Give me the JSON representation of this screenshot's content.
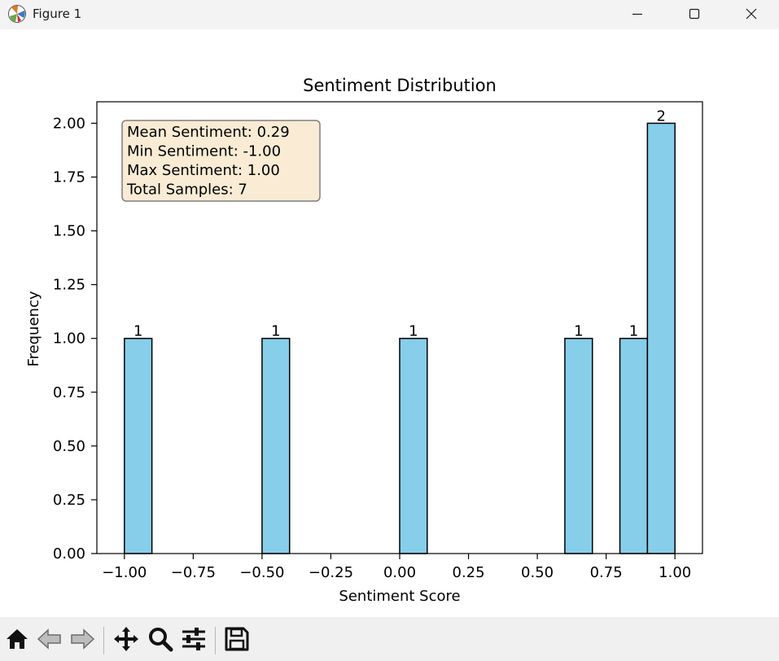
{
  "window": {
    "title": "Figure 1",
    "minimize_icon": "minimize-icon",
    "maximize_icon": "maximize-icon",
    "close_icon": "close-icon"
  },
  "toolbar": {
    "items": [
      {
        "name": "home-button",
        "icon": "home-icon"
      },
      {
        "name": "back-button",
        "icon": "back-arrow-icon"
      },
      {
        "name": "forward-button",
        "icon": "forward-arrow-icon"
      },
      {
        "name": "pan-button",
        "icon": "move-icon"
      },
      {
        "name": "zoom-button",
        "icon": "magnifier-icon"
      },
      {
        "name": "configure-subplots-button",
        "icon": "sliders-icon"
      },
      {
        "name": "save-button",
        "icon": "floppy-disk-icon"
      }
    ]
  },
  "chart_data": {
    "type": "bar",
    "title": "Sentiment Distribution",
    "xlabel": "Sentiment Score",
    "ylabel": "Frequency",
    "xlim": [
      -1.1,
      1.1
    ],
    "ylim": [
      0,
      2.1
    ],
    "bar_color": "#87ceeb",
    "edge_color": "#000000",
    "bins": [
      {
        "x0": -1.0,
        "x1": -0.9,
        "count": 1,
        "label": "1"
      },
      {
        "x0": -0.5,
        "x1": -0.4,
        "count": 1,
        "label": "1"
      },
      {
        "x0": 0.0,
        "x1": 0.1,
        "count": 1,
        "label": "1"
      },
      {
        "x0": 0.6,
        "x1": 0.7,
        "count": 1,
        "label": "1"
      },
      {
        "x0": 0.8,
        "x1": 0.9,
        "count": 1,
        "label": "1"
      },
      {
        "x0": 0.9,
        "x1": 1.0,
        "count": 2,
        "label": "2"
      }
    ],
    "x_ticks": [
      {
        "value": -1.0,
        "label": "−1.00"
      },
      {
        "value": -0.75,
        "label": "−0.75"
      },
      {
        "value": -0.5,
        "label": "−0.50"
      },
      {
        "value": -0.25,
        "label": "−0.25"
      },
      {
        "value": 0.0,
        "label": "0.00"
      },
      {
        "value": 0.25,
        "label": "0.25"
      },
      {
        "value": 0.5,
        "label": "0.50"
      },
      {
        "value": 0.75,
        "label": "0.75"
      },
      {
        "value": 1.0,
        "label": "1.00"
      }
    ],
    "y_ticks": [
      {
        "value": 0.0,
        "label": "0.00"
      },
      {
        "value": 0.25,
        "label": "0.25"
      },
      {
        "value": 0.5,
        "label": "0.50"
      },
      {
        "value": 0.75,
        "label": "0.75"
      },
      {
        "value": 1.0,
        "label": "1.00"
      },
      {
        "value": 1.25,
        "label": "1.25"
      },
      {
        "value": 1.5,
        "label": "1.50"
      },
      {
        "value": 1.75,
        "label": "1.75"
      },
      {
        "value": 2.0,
        "label": "2.00"
      }
    ],
    "annotation": {
      "lines": [
        "Mean Sentiment: 0.29",
        "Min Sentiment: -1.00",
        "Max Sentiment: 1.00",
        "Total Samples: 7"
      ],
      "box_color": "#f9ebd4",
      "placement": "top-left"
    },
    "grid": false
  }
}
